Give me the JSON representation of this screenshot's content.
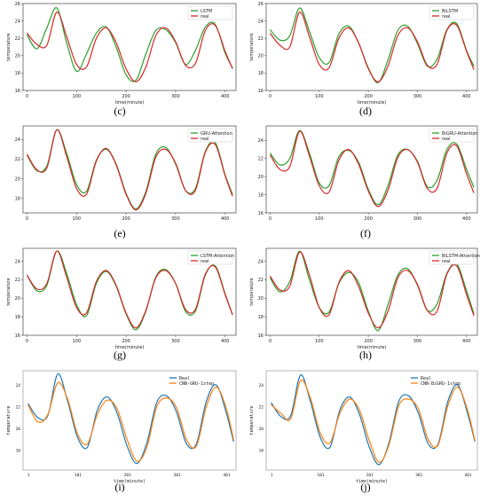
{
  "figure": {
    "captions": [
      "(c)",
      "(d)",
      "(e)",
      "(f)",
      "(g)",
      "(h)",
      "(i)",
      "(j)"
    ]
  },
  "colors": {
    "green": "#2ca02c",
    "red": "#d62728",
    "blue": "#1f77b4",
    "orange": "#ff7f0e",
    "frame": "#444444"
  },
  "chart_data": [
    {
      "type": "line",
      "caption": "(c)",
      "style": "matplotlib",
      "xlabel": "time(minute)",
      "ylabel": "temperature",
      "xlim": [
        -8,
        422
      ],
      "ylim": [
        16,
        26
      ],
      "xticks": [
        0,
        100,
        200,
        300,
        400
      ],
      "xtick_labels": [
        "0",
        "100",
        "200",
        "300",
        "400"
      ],
      "yticks": [
        16,
        18,
        20,
        22,
        24,
        26
      ],
      "ytick_labels": [
        "16",
        "18",
        "20",
        "22",
        "24",
        "26"
      ],
      "legend_position": "top-right",
      "x": [
        0,
        20,
        40,
        60,
        80,
        100,
        120,
        140,
        160,
        180,
        200,
        220,
        240,
        260,
        280,
        300,
        320,
        340,
        360,
        380,
        400,
        415
      ],
      "series": [
        {
          "name": "LSTM",
          "color": "green",
          "values": [
            22.4,
            20.8,
            23.2,
            25.5,
            21.5,
            18.2,
            20.2,
            22.6,
            23.3,
            21.0,
            17.8,
            17.2,
            20.2,
            22.9,
            23.0,
            21.5,
            19.0,
            20.6,
            23.3,
            23.6,
            20.3,
            18.6
          ]
        },
        {
          "name": "real",
          "color": "red",
          "values": [
            22.6,
            21.3,
            21.2,
            25.0,
            22.2,
            19.0,
            18.7,
            22.0,
            23.2,
            21.5,
            18.5,
            17.0,
            18.7,
            22.3,
            23.2,
            21.6,
            18.9,
            19.1,
            22.9,
            23.5,
            20.5,
            18.5
          ]
        }
      ]
    },
    {
      "type": "line",
      "caption": "(d)",
      "style": "matplotlib",
      "xlabel": "time(minute)",
      "ylabel": "temperature",
      "xlim": [
        -8,
        422
      ],
      "ylim": [
        16,
        26
      ],
      "xticks": [
        0,
        100,
        200,
        300,
        400
      ],
      "xtick_labels": [
        "0",
        "100",
        "200",
        "300",
        "400"
      ],
      "yticks": [
        16,
        18,
        20,
        22,
        24,
        26
      ],
      "ytick_labels": [
        "16",
        "18",
        "20",
        "22",
        "24",
        "26"
      ],
      "legend_position": "top-right",
      "x": [
        0,
        20,
        40,
        60,
        80,
        100,
        120,
        140,
        160,
        180,
        200,
        220,
        240,
        260,
        280,
        300,
        320,
        340,
        360,
        380,
        400,
        415
      ],
      "series": [
        {
          "name": "BiLSTM",
          "color": "green",
          "values": [
            23.0,
            21.8,
            22.3,
            25.5,
            22.8,
            19.8,
            19.2,
            22.5,
            23.4,
            21.5,
            18.6,
            16.9,
            19.5,
            22.9,
            23.4,
            21.4,
            18.8,
            19.6,
            23.0,
            23.7,
            20.6,
            18.8
          ]
        },
        {
          "name": "real",
          "color": "red",
          "values": [
            22.6,
            21.2,
            21.0,
            25.0,
            22.2,
            19.0,
            18.6,
            22.0,
            23.2,
            21.5,
            18.5,
            17.0,
            18.8,
            22.3,
            23.2,
            21.6,
            18.9,
            19.0,
            22.9,
            23.5,
            20.5,
            18.4
          ]
        }
      ]
    },
    {
      "type": "line",
      "caption": "(e)",
      "style": "matplotlib",
      "xlabel": "",
      "ylabel": "",
      "xlim": [
        -8,
        422
      ],
      "ylim": [
        16.5,
        25.4
      ],
      "xticks": [
        0,
        100,
        200,
        300,
        400
      ],
      "xtick_labels": [
        "0",
        "100",
        "200",
        "300",
        "400"
      ],
      "yticks": [
        18,
        20,
        22,
        24
      ],
      "ytick_labels": [
        "18",
        "20",
        "22",
        "24"
      ],
      "legend_position": "top-right",
      "x": [
        0,
        20,
        40,
        60,
        80,
        100,
        120,
        140,
        160,
        180,
        200,
        220,
        240,
        260,
        280,
        300,
        320,
        340,
        360,
        380,
        400,
        415
      ],
      "series": [
        {
          "name": "GRU-Attention",
          "color": "green",
          "values": [
            22.4,
            20.8,
            21.3,
            25.0,
            22.6,
            19.4,
            18.7,
            21.9,
            23.0,
            21.5,
            18.5,
            16.9,
            18.7,
            22.5,
            23.2,
            21.5,
            18.8,
            19.0,
            22.8,
            23.7,
            20.4,
            18.4
          ]
        },
        {
          "name": "real",
          "color": "red",
          "values": [
            22.5,
            20.9,
            21.1,
            25.0,
            22.3,
            19.0,
            18.4,
            21.8,
            23.1,
            21.4,
            18.4,
            16.8,
            18.5,
            22.2,
            23.0,
            21.6,
            18.8,
            18.8,
            22.7,
            23.5,
            20.3,
            18.2
          ]
        }
      ]
    },
    {
      "type": "line",
      "caption": "(f)",
      "style": "matplotlib",
      "xlabel": "",
      "ylabel": "",
      "xlim": [
        -8,
        422
      ],
      "ylim": [
        16,
        25.6
      ],
      "xticks": [
        0,
        100,
        200,
        300,
        400
      ],
      "xtick_labels": [
        "0",
        "100",
        "200",
        "300",
        "400"
      ],
      "yticks": [
        16,
        18,
        20,
        22,
        24
      ],
      "ytick_labels": [
        "16",
        "18",
        "20",
        "22",
        "24"
      ],
      "legend_position": "top-right",
      "x": [
        0,
        20,
        40,
        60,
        80,
        100,
        120,
        140,
        160,
        180,
        200,
        220,
        240,
        260,
        280,
        300,
        320,
        340,
        360,
        380,
        400,
        415
      ],
      "series": [
        {
          "name": "BiGRU-Attention",
          "color": "green",
          "values": [
            22.6,
            21.3,
            22.0,
            25.1,
            22.6,
            19.3,
            19.0,
            22.2,
            22.9,
            21.6,
            18.6,
            16.9,
            19.0,
            22.4,
            23.0,
            21.7,
            18.9,
            19.6,
            23.0,
            23.6,
            20.8,
            18.8
          ]
        },
        {
          "name": "real",
          "color": "red",
          "values": [
            22.4,
            20.8,
            21.1,
            25.0,
            22.3,
            19.0,
            18.3,
            21.8,
            23.0,
            21.4,
            18.4,
            16.7,
            18.5,
            22.1,
            23.0,
            21.6,
            18.7,
            18.7,
            22.6,
            23.4,
            20.3,
            18.2
          ]
        }
      ]
    },
    {
      "type": "line",
      "caption": "(g)",
      "style": "matplotlib",
      "xlabel": "time(minute)",
      "ylabel": "temperature",
      "xlim": [
        -8,
        422
      ],
      "ylim": [
        16,
        25.4
      ],
      "xticks": [
        0,
        100,
        200,
        300,
        400
      ],
      "xtick_labels": [
        "0",
        "100",
        "200",
        "300",
        "400"
      ],
      "yticks": [
        16,
        18,
        20,
        22,
        24
      ],
      "ytick_labels": [
        "16",
        "18",
        "20",
        "22",
        "24"
      ],
      "legend_position": "top-right",
      "x": [
        0,
        20,
        40,
        60,
        80,
        100,
        120,
        140,
        160,
        180,
        200,
        220,
        240,
        260,
        280,
        300,
        320,
        340,
        360,
        380,
        400,
        415
      ],
      "series": [
        {
          "name": "LSTM-Attention",
          "color": "green",
          "values": [
            22.5,
            20.8,
            21.4,
            25.1,
            22.7,
            19.3,
            18.1,
            21.6,
            22.9,
            21.3,
            18.3,
            16.6,
            18.6,
            22.3,
            23.1,
            21.6,
            18.6,
            18.6,
            22.5,
            23.5,
            20.5,
            18.2
          ]
        },
        {
          "name": "real",
          "color": "red",
          "values": [
            22.5,
            21.0,
            21.6,
            25.1,
            22.3,
            19.0,
            18.4,
            21.8,
            23.0,
            21.4,
            18.4,
            16.8,
            18.7,
            22.2,
            23.0,
            21.6,
            18.8,
            18.8,
            22.6,
            23.4,
            20.4,
            18.2
          ]
        }
      ]
    },
    {
      "type": "line",
      "caption": "(h)",
      "style": "matplotlib",
      "xlabel": "time(minute)",
      "ylabel": "temperature",
      "xlim": [
        -8,
        422
      ],
      "ylim": [
        16,
        25.4
      ],
      "xticks": [
        0,
        100,
        200,
        300,
        400
      ],
      "xtick_labels": [
        "0",
        "100",
        "200",
        "300",
        "400"
      ],
      "yticks": [
        16,
        18,
        20,
        22,
        24
      ],
      "ytick_labels": [
        "16",
        "18",
        "20",
        "22",
        "24"
      ],
      "legend_position": "top-right",
      "x": [
        0,
        20,
        40,
        60,
        80,
        100,
        120,
        140,
        160,
        180,
        200,
        220,
        240,
        260,
        280,
        300,
        320,
        340,
        360,
        380,
        400,
        415
      ],
      "series": [
        {
          "name": "BiLSTM-Attention",
          "color": "green",
          "values": [
            22.2,
            20.7,
            21.8,
            25.1,
            22.0,
            19.0,
            18.5,
            21.6,
            22.8,
            21.7,
            18.6,
            16.5,
            19.3,
            22.5,
            23.2,
            21.4,
            18.7,
            19.4,
            22.7,
            23.7,
            20.8,
            18.3
          ]
        },
        {
          "name": "real",
          "color": "red",
          "values": [
            22.4,
            20.9,
            21.3,
            25.0,
            22.5,
            19.0,
            18.2,
            21.7,
            23.0,
            21.3,
            18.4,
            16.8,
            18.6,
            22.2,
            23.0,
            21.5,
            18.7,
            18.6,
            22.6,
            23.5,
            20.4,
            18.1
          ]
        }
      ]
    },
    {
      "type": "line",
      "caption": "(i)",
      "style": "seaborn",
      "xlabel": "time(minute)",
      "ylabel": "temperature",
      "xlim": [
        -10,
        420
      ],
      "ylim": [
        16.2,
        25.3
      ],
      "xticks": [
        1,
        101,
        201,
        301,
        401
      ],
      "xtick_labels": [
        "1",
        "101",
        "201",
        "301",
        "401"
      ],
      "yticks": [
        18,
        20,
        22,
        24
      ],
      "ytick_labels": [
        "18",
        "20",
        "22",
        "24"
      ],
      "legend_position": "top-right",
      "x": [
        0,
        20,
        40,
        60,
        80,
        100,
        120,
        140,
        160,
        180,
        200,
        220,
        240,
        260,
        280,
        300,
        320,
        340,
        360,
        380,
        400,
        415
      ],
      "series": [
        {
          "name": "Real",
          "color": "blue",
          "values": [
            22.3,
            21.0,
            21.2,
            25.0,
            22.5,
            19.2,
            18.3,
            21.7,
            22.9,
            21.4,
            18.4,
            16.8,
            18.7,
            22.4,
            23.0,
            21.5,
            18.6,
            18.6,
            22.5,
            24.0,
            21.5,
            18.8
          ]
        },
        {
          "name": "CNN-GRU-1step",
          "color": "orange",
          "values": [
            22.2,
            20.6,
            21.3,
            24.2,
            22.7,
            19.5,
            18.6,
            21.3,
            22.6,
            21.8,
            19.0,
            17.0,
            18.3,
            22.0,
            22.8,
            21.9,
            19.0,
            18.4,
            22.0,
            23.8,
            21.9,
            19.0
          ]
        }
      ]
    },
    {
      "type": "line",
      "caption": "(j)",
      "style": "seaborn",
      "xlabel": "time(minute)",
      "ylabel": "temperature",
      "xlim": [
        -10,
        420
      ],
      "ylim": [
        16.2,
        25.3
      ],
      "xticks": [
        1,
        101,
        201,
        301,
        401
      ],
      "xtick_labels": [
        "1",
        "101",
        "201",
        "301",
        "401"
      ],
      "yticks": [
        18,
        20,
        22,
        24
      ],
      "ytick_labels": [
        "18",
        "20",
        "22",
        "24"
      ],
      "legend_position": "top-right",
      "x": [
        0,
        20,
        40,
        60,
        80,
        100,
        120,
        140,
        160,
        180,
        200,
        220,
        240,
        260,
        280,
        300,
        320,
        340,
        360,
        380,
        400,
        415
      ],
      "series": [
        {
          "name": "Real",
          "color": "blue",
          "values": [
            22.4,
            21.1,
            21.2,
            24.9,
            22.5,
            19.2,
            18.3,
            21.7,
            22.9,
            21.3,
            18.3,
            16.7,
            18.7,
            22.5,
            23.0,
            21.4,
            18.6,
            18.6,
            22.5,
            24.0,
            21.4,
            18.8
          ]
        },
        {
          "name": "CNN-BiGRU-1step",
          "color": "orange",
          "values": [
            22.2,
            21.4,
            20.9,
            24.4,
            22.8,
            19.6,
            18.7,
            21.4,
            22.7,
            21.7,
            18.9,
            16.9,
            18.5,
            22.1,
            22.7,
            21.8,
            19.0,
            18.5,
            22.1,
            23.8,
            21.7,
            18.9
          ]
        }
      ]
    }
  ]
}
